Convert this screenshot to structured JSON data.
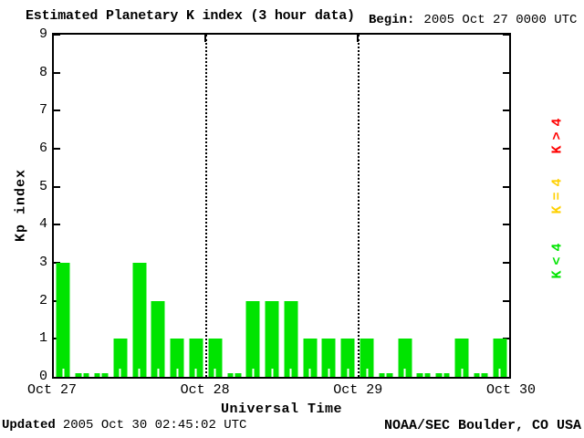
{
  "title": "Estimated Planetary K index (3 hour data)",
  "begin": {
    "label": "Begin:",
    "value": "2005 Oct 27 0000 UTC"
  },
  "axes": {
    "ylabel": "Kp index",
    "xlabel": "Universal Time",
    "y_ticks": [
      "0",
      "1",
      "2",
      "3",
      "4",
      "5",
      "6",
      "7",
      "8",
      "9"
    ],
    "x_ticks": [
      "Oct 27",
      "Oct 28",
      "Oct 29",
      "Oct 30"
    ]
  },
  "legend": [
    {
      "label": "K>4",
      "color": "#ff0000"
    },
    {
      "label": "K=4",
      "color": "#ffd000"
    },
    {
      "label": "K<4",
      "color": "#00e400"
    }
  ],
  "footer": {
    "updated_label": "Updated",
    "updated_value": "2005 Oct 30 02:45:02 UTC",
    "credit": "NOAA/SEC Boulder, CO USA"
  },
  "chart_data": {
    "type": "bar",
    "title": "Estimated Planetary K index (3 hour data)",
    "xlabel": "Universal Time",
    "ylabel": "Kp index",
    "ylim": [
      0,
      9
    ],
    "bin_hours": 3,
    "begin": "2005 Oct 27 0000 UTC",
    "bar_color": "#00e400",
    "grid": "dotted vertical lines at day boundaries",
    "legend_position": "right, rotated 90deg",
    "x_tick_labels": [
      "Oct 27",
      "Oct 28",
      "Oct 29",
      "Oct 30"
    ],
    "days": [
      {
        "date": "2005 Oct 27",
        "kp": [
          3,
          0,
          0,
          1,
          3,
          2,
          1,
          1
        ]
      },
      {
        "date": "2005 Oct 28",
        "kp": [
          1,
          0,
          2,
          2,
          2,
          1,
          1,
          1
        ]
      },
      {
        "date": "2005 Oct 29",
        "kp": [
          1,
          0,
          1,
          0,
          0,
          1,
          0,
          1
        ]
      }
    ],
    "values": [
      3,
      0,
      0,
      1,
      3,
      2,
      1,
      1,
      1,
      0,
      2,
      2,
      2,
      1,
      1,
      1,
      1,
      0,
      1,
      0,
      0,
      1,
      0,
      1
    ]
  }
}
